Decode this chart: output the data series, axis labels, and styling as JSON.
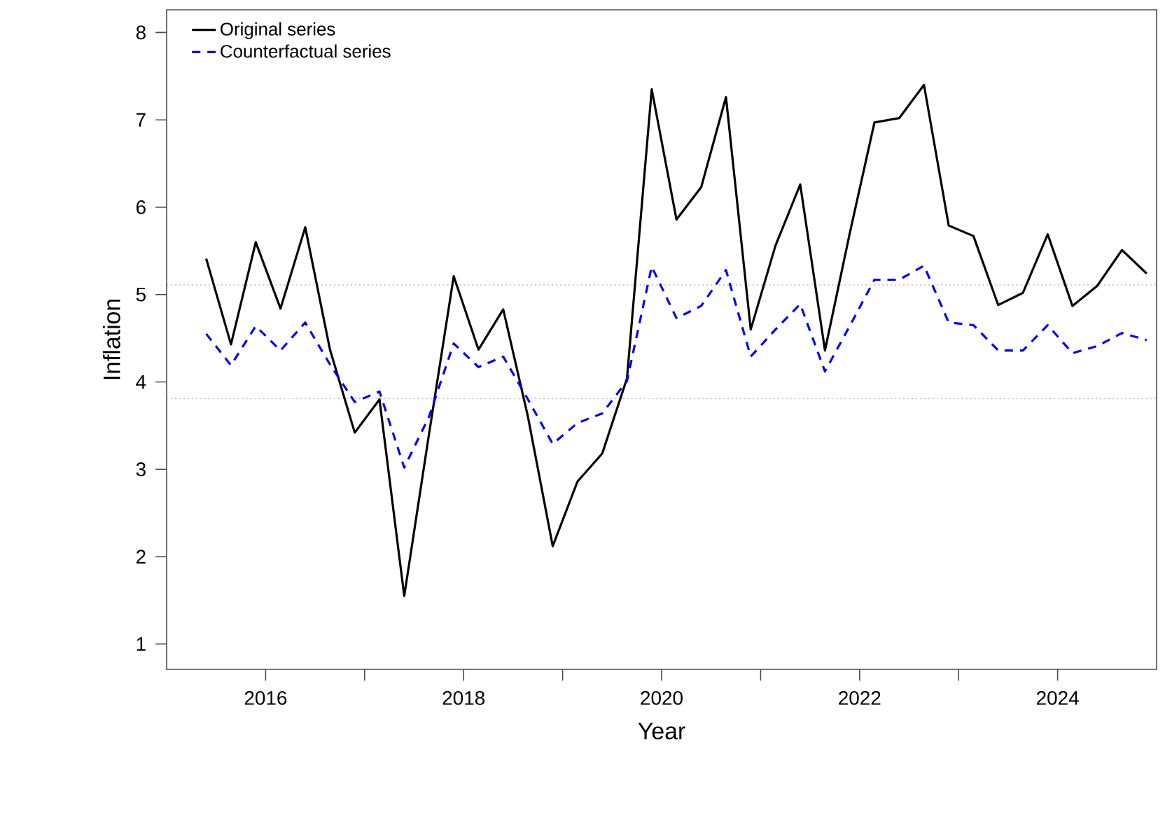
{
  "chart_data": {
    "type": "line",
    "xlabel": "Year",
    "ylabel": "Inflation",
    "x": [
      2015.4,
      2015.65,
      2015.9,
      2016.15,
      2016.4,
      2016.65,
      2016.9,
      2017.15,
      2017.4,
      2017.65,
      2017.9,
      2018.15,
      2018.4,
      2018.65,
      2018.9,
      2019.15,
      2019.4,
      2019.65,
      2019.9,
      2020.15,
      2020.4,
      2020.65,
      2020.9,
      2021.15,
      2021.4,
      2021.65,
      2021.9,
      2022.15,
      2022.4,
      2022.65,
      2022.9,
      2023.15,
      2023.4,
      2023.65,
      2023.9,
      2024.15,
      2024.4,
      2024.65,
      2024.9
    ],
    "series": [
      {
        "name": "Original series",
        "color": "#000000",
        "line_style": "solid",
        "values": [
          5.41,
          4.43,
          5.6,
          4.84,
          5.77,
          4.37,
          3.42,
          3.8,
          1.55,
          3.4,
          5.21,
          4.37,
          4.83,
          3.6,
          2.12,
          2.86,
          3.18,
          4.04,
          7.35,
          5.86,
          6.23,
          7.26,
          4.6,
          5.56,
          6.26,
          4.36,
          5.7,
          6.97,
          7.02,
          7.4,
          5.79,
          5.67,
          4.88,
          5.02,
          5.69,
          4.87,
          5.1,
          5.51,
          5.24
        ]
      },
      {
        "name": "Counterfactual series",
        "color": "#0000ff",
        "line_style": "dashed",
        "values": [
          4.55,
          4.19,
          4.64,
          4.36,
          4.68,
          4.2,
          3.77,
          3.89,
          3.02,
          3.6,
          4.44,
          4.17,
          4.29,
          3.8,
          3.29,
          3.53,
          3.64,
          4.01,
          5.32,
          4.73,
          4.87,
          5.28,
          4.29,
          4.6,
          4.89,
          4.12,
          4.64,
          5.17,
          5.17,
          5.33,
          4.68,
          4.65,
          4.36,
          4.36,
          4.65,
          4.33,
          4.41,
          4.56,
          4.48
        ]
      }
    ],
    "xlim": [
      2015,
      2025
    ],
    "ylim": [
      0.71,
      8.26
    ],
    "xticks": [
      2016,
      {
        "value": 2017,
        "label": null
      },
      2018,
      {
        "value": 2019,
        "label": null
      },
      2020,
      {
        "value": 2021,
        "label": null
      },
      2022,
      {
        "value": 2023,
        "label": null
      },
      2024
    ],
    "yticks": [
      1,
      2,
      3,
      4,
      5,
      6,
      7,
      8
    ],
    "ref_lines": [
      {
        "axis": "y",
        "value": 5.11,
        "color": "#999999",
        "line_style": "dotted"
      },
      {
        "axis": "y",
        "value": 3.81,
        "color": "#999999",
        "line_style": "dotted"
      }
    ],
    "marker": "none",
    "grid": false,
    "legend": "top left"
  }
}
